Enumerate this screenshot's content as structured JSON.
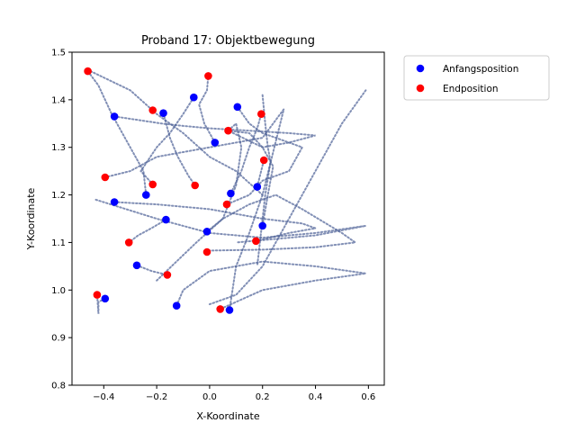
{
  "chart_data": {
    "type": "scatter",
    "title": "Proband 17: Objektbewegung",
    "xlabel": "X-Koordinate",
    "ylabel": "Y-Koordinate",
    "xlim": [
      -0.52,
      0.66
    ],
    "ylim": [
      0.8,
      1.5
    ],
    "xticks": [
      -0.4,
      -0.2,
      0.0,
      0.2,
      0.4,
      0.6
    ],
    "xtick_labels": [
      "−0.4",
      "−0.2",
      "0.0",
      "0.2",
      "0.4",
      "0.6"
    ],
    "yticks": [
      0.8,
      0.9,
      1.0,
      1.1,
      1.2,
      1.3,
      1.4,
      1.5
    ],
    "ytick_labels": [
      "0.8",
      "0.9",
      "1.0",
      "1.1",
      "1.2",
      "1.3",
      "1.4",
      "1.5"
    ],
    "grid": false,
    "legend_position": "outside-top-right",
    "path_color": "#4c5f95",
    "series": [
      {
        "name": "Anfangsposition",
        "color": "#0000ff",
        "points": [
          [
            -0.36,
            1.365
          ],
          [
            -0.06,
            1.405
          ],
          [
            0.105,
            1.385
          ],
          [
            -0.175,
            1.372
          ],
          [
            0.02,
            1.31
          ],
          [
            -0.36,
            1.185
          ],
          [
            -0.24,
            1.2
          ],
          [
            0.08,
            1.203
          ],
          [
            0.18,
            1.217
          ],
          [
            -0.165,
            1.148
          ],
          [
            -0.01,
            1.123
          ],
          [
            0.2,
            1.135
          ],
          [
            -0.275,
            1.052
          ],
          [
            -0.395,
            0.982
          ],
          [
            -0.125,
            0.967
          ],
          [
            0.075,
            0.958
          ]
        ]
      },
      {
        "name": "Endposition",
        "color": "#ff0000",
        "points": [
          [
            -0.46,
            1.46
          ],
          [
            -0.005,
            1.45
          ],
          [
            -0.215,
            1.378
          ],
          [
            0.195,
            1.37
          ],
          [
            0.07,
            1.335
          ],
          [
            0.205,
            1.273
          ],
          [
            -0.395,
            1.237
          ],
          [
            -0.215,
            1.222
          ],
          [
            -0.055,
            1.22
          ],
          [
            0.065,
            1.18
          ],
          [
            -0.305,
            1.1
          ],
          [
            0.175,
            1.103
          ],
          [
            -0.01,
            1.08
          ],
          [
            -0.16,
            1.032
          ],
          [
            -0.425,
            0.99
          ],
          [
            0.04,
            0.96
          ]
        ]
      }
    ],
    "paths": [
      [
        [
          -0.36,
          1.365
        ],
        [
          -0.3,
          1.36
        ],
        [
          -0.18,
          1.35
        ],
        [
          -0.1,
          1.345
        ],
        [
          0.0,
          1.34
        ],
        [
          0.15,
          1.335
        ],
        [
          0.3,
          1.33
        ],
        [
          0.4,
          1.325
        ],
        [
          0.3,
          1.31
        ],
        [
          0.2,
          1.3
        ],
        [
          0.07,
          1.335
        ]
      ],
      [
        [
          -0.06,
          1.405
        ],
        [
          -0.1,
          1.37
        ],
        [
          -0.15,
          1.33
        ],
        [
          -0.2,
          1.3
        ],
        [
          -0.26,
          1.25
        ],
        [
          -0.215,
          1.222
        ]
      ],
      [
        [
          0.105,
          1.385
        ],
        [
          0.15,
          1.35
        ],
        [
          0.2,
          1.33
        ],
        [
          0.25,
          1.32
        ],
        [
          0.35,
          1.3
        ],
        [
          0.3,
          1.25
        ],
        [
          0.2,
          1.23
        ],
        [
          0.15,
          1.2
        ],
        [
          0.065,
          1.18
        ]
      ],
      [
        [
          -0.175,
          1.372
        ],
        [
          -0.15,
          1.32
        ],
        [
          -0.12,
          1.28
        ],
        [
          -0.08,
          1.24
        ],
        [
          -0.055,
          1.22
        ]
      ],
      [
        [
          0.02,
          1.31
        ],
        [
          -0.02,
          1.35
        ],
        [
          -0.04,
          1.39
        ],
        [
          -0.01,
          1.42
        ],
        [
          -0.005,
          1.45
        ]
      ],
      [
        [
          -0.36,
          1.185
        ],
        [
          -0.2,
          1.18
        ],
        [
          0.0,
          1.17
        ],
        [
          0.2,
          1.15
        ],
        [
          0.35,
          1.14
        ],
        [
          0.4,
          1.13
        ],
        [
          0.3,
          1.12
        ],
        [
          0.175,
          1.103
        ]
      ],
      [
        [
          -0.24,
          1.2
        ],
        [
          -0.25,
          1.25
        ],
        [
          -0.3,
          1.3
        ],
        [
          -0.37,
          1.37
        ],
        [
          -0.42,
          1.43
        ],
        [
          -0.46,
          1.46
        ]
      ],
      [
        [
          0.08,
          1.203
        ],
        [
          0.12,
          1.25
        ],
        [
          0.15,
          1.3
        ],
        [
          0.18,
          1.34
        ],
        [
          0.195,
          1.37
        ]
      ],
      [
        [
          0.18,
          1.217
        ],
        [
          0.19,
          1.24
        ],
        [
          0.205,
          1.273
        ]
      ],
      [
        [
          -0.165,
          1.148
        ],
        [
          -0.22,
          1.13
        ],
        [
          -0.27,
          1.115
        ],
        [
          -0.305,
          1.1
        ]
      ],
      [
        [
          -0.01,
          1.123
        ],
        [
          0.05,
          1.15
        ],
        [
          0.15,
          1.18
        ],
        [
          0.25,
          1.2
        ],
        [
          0.35,
          1.17
        ],
        [
          0.5,
          1.12
        ],
        [
          0.55,
          1.1
        ],
        [
          0.4,
          1.09
        ],
        [
          0.2,
          1.085
        ],
        [
          0.0,
          1.083
        ],
        [
          -0.01,
          1.08
        ]
      ],
      [
        [
          0.2,
          1.135
        ],
        [
          0.22,
          1.2
        ],
        [
          0.24,
          1.26
        ],
        [
          0.2,
          1.3
        ],
        [
          0.15,
          1.33
        ],
        [
          0.07,
          1.335
        ]
      ],
      [
        [
          -0.275,
          1.052
        ],
        [
          -0.22,
          1.04
        ],
        [
          -0.16,
          1.032
        ]
      ],
      [
        [
          -0.395,
          0.982
        ],
        [
          -0.42,
          0.975
        ],
        [
          -0.42,
          0.95
        ],
        [
          -0.425,
          0.99
        ]
      ],
      [
        [
          -0.125,
          0.967
        ],
        [
          -0.1,
          1.0
        ],
        [
          0.0,
          1.04
        ],
        [
          0.2,
          1.06
        ],
        [
          0.4,
          1.05
        ],
        [
          0.59,
          1.035
        ],
        [
          0.4,
          1.02
        ],
        [
          0.2,
          1.0
        ],
        [
          0.04,
          0.96
        ]
      ],
      [
        [
          0.075,
          0.958
        ],
        [
          0.1,
          1.05
        ],
        [
          0.15,
          1.12
        ],
        [
          0.2,
          1.2
        ],
        [
          0.28,
          1.38
        ],
        [
          0.2,
          1.32
        ],
        [
          0.0,
          1.3
        ],
        [
          -0.2,
          1.28
        ],
        [
          -0.3,
          1.25
        ],
        [
          -0.395,
          1.237
        ]
      ],
      [
        [
          -0.43,
          1.19
        ],
        [
          -0.2,
          1.15
        ],
        [
          0.0,
          1.12
        ],
        [
          0.2,
          1.11
        ],
        [
          0.4,
          1.12
        ],
        [
          0.59,
          1.135
        ],
        [
          0.4,
          1.115
        ],
        [
          0.2,
          1.105
        ],
        [
          0.1,
          1.1
        ]
      ],
      [
        [
          0.59,
          1.42
        ],
        [
          0.5,
          1.35
        ],
        [
          0.4,
          1.25
        ],
        [
          0.3,
          1.15
        ],
        [
          0.2,
          1.05
        ],
        [
          0.1,
          0.99
        ],
        [
          0.0,
          0.97
        ]
      ],
      [
        [
          -0.45,
          1.46
        ],
        [
          -0.3,
          1.42
        ],
        [
          -0.2,
          1.37
        ],
        [
          -0.1,
          1.33
        ],
        [
          0.0,
          1.28
        ],
        [
          0.1,
          1.25
        ],
        [
          0.2,
          1.2
        ]
      ],
      [
        [
          0.2,
          1.41
        ],
        [
          0.21,
          1.35
        ],
        [
          0.22,
          1.3
        ],
        [
          0.23,
          1.27
        ],
        [
          0.21,
          1.2
        ],
        [
          0.19,
          1.1
        ],
        [
          0.18,
          1.05
        ]
      ],
      [
        [
          -0.2,
          1.02
        ],
        [
          -0.05,
          1.1
        ],
        [
          0.05,
          1.15
        ],
        [
          0.1,
          1.22
        ],
        [
          0.12,
          1.3
        ],
        [
          0.1,
          1.35
        ],
        [
          0.07,
          1.335
        ]
      ]
    ]
  }
}
